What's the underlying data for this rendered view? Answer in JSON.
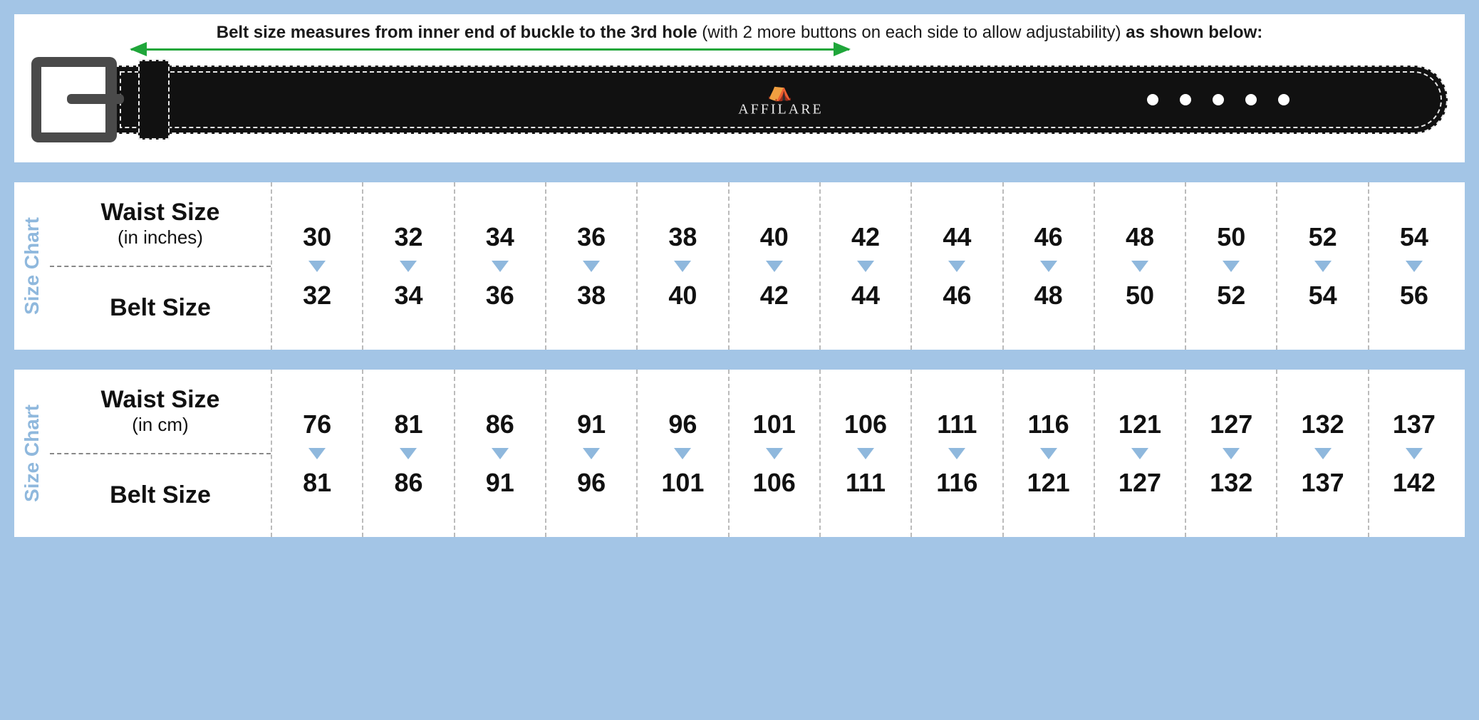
{
  "instruction": {
    "bold_prefix": "Belt size measures from inner end of buckle to the 3rd hole",
    "middle": " (with 2 more buttons on each side to allow adjustability) ",
    "bold_suffix": "as shown below:"
  },
  "brand": "AFFILARE",
  "belt_holes_count": 5,
  "side_label": "Size Chart",
  "colors": {
    "page_bg": "#a3c5e6",
    "panel_bg": "#ffffff",
    "arrow_green": "#1fa63a",
    "buckle_gray": "#4a4a4a",
    "strap_black": "#111111",
    "stitch_white": "#e8e8e8",
    "side_label_blue": "#8fb8dd",
    "arrow_down_blue": "#8fb8dd",
    "divider_gray": "#bbbbbb",
    "text_color": "#111111"
  },
  "charts": [
    {
      "row1_label": "Waist Size",
      "row1_sub": "(in inches)",
      "row2_label": "Belt Size",
      "waist": [
        30,
        32,
        34,
        36,
        38,
        40,
        42,
        44,
        46,
        48,
        50,
        52,
        54
      ],
      "belt": [
        32,
        34,
        36,
        38,
        40,
        42,
        44,
        46,
        48,
        50,
        52,
        54,
        56
      ]
    },
    {
      "row1_label": "Waist Size",
      "row1_sub": "(in cm)",
      "row2_label": "Belt Size",
      "waist": [
        76,
        81,
        86,
        91,
        96,
        101,
        106,
        111,
        116,
        121,
        127,
        132,
        137
      ],
      "belt": [
        81,
        86,
        91,
        96,
        101,
        106,
        111,
        116,
        121,
        127,
        132,
        137,
        142
      ]
    }
  ],
  "typography": {
    "instruction_fontsize": 24,
    "label_main_fontsize": 34,
    "label_sub_fontsize": 26,
    "value_fontsize": 36,
    "side_label_fontsize": 28
  }
}
